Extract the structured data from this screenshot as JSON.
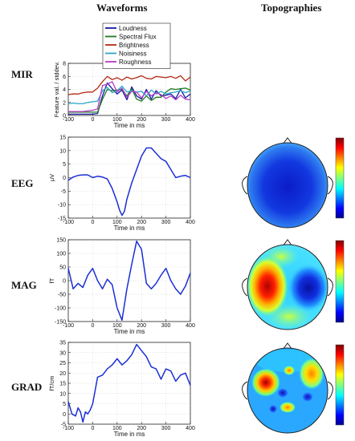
{
  "headers": {
    "waveforms": "Waveforms",
    "topographies": "Topographies"
  },
  "rows": [
    {
      "label": "MIR"
    },
    {
      "label": "EEG"
    },
    {
      "label": "MAG"
    },
    {
      "label": "GRAD"
    }
  ],
  "colors": {
    "loudness": "#1a1aa6",
    "spectral_flux": "#1f7a1f",
    "brightness": "#b22a14",
    "noisiness": "#2ea6c9",
    "roughness": "#b43cc4",
    "wave": "#1b2fd6"
  },
  "chart_data": [
    {
      "type": "line",
      "title": "",
      "xlabel": "Time in ms",
      "ylabel": "Feature val. / stddev.",
      "xlim": [
        -100,
        400
      ],
      "ylim": [
        0,
        8
      ],
      "xticks": [
        -100,
        0,
        100,
        200,
        300,
        400
      ],
      "yticks": [
        0,
        2,
        4,
        6,
        8
      ],
      "grid": true,
      "legend": "top-left",
      "x": [
        -100,
        -80,
        -60,
        -40,
        -20,
        0,
        20,
        40,
        60,
        80,
        100,
        120,
        140,
        160,
        180,
        200,
        220,
        240,
        260,
        280,
        300,
        320,
        340,
        360,
        380,
        400
      ],
      "series": [
        {
          "name": "Loudness",
          "color": "#1a1aa6",
          "values": [
            0.2,
            0.2,
            0.2,
            0.2,
            0.2,
            0.2,
            0.3,
            3.0,
            5.0,
            4.1,
            3.3,
            3.9,
            2.4,
            4.4,
            3.0,
            2.5,
            4.0,
            2.5,
            3.8,
            3.0,
            3.1,
            3.3,
            2.6,
            4.0,
            2.7,
            3.3
          ]
        },
        {
          "name": "Spectral Flux",
          "color": "#1f7a1f",
          "values": [
            0.5,
            0.5,
            0.5,
            0.5,
            0.5,
            0.5,
            0.5,
            2.5,
            4.0,
            3.8,
            3.9,
            4.0,
            3.0,
            4.1,
            2.5,
            2.2,
            3.0,
            2.3,
            2.8,
            2.8,
            3.6,
            4.1,
            4.0,
            4.1,
            4.2,
            3.9
          ]
        },
        {
          "name": "Brightness",
          "color": "#b22a14",
          "values": [
            3.2,
            3.3,
            3.3,
            3.5,
            3.6,
            3.6,
            4.2,
            5.2,
            6.0,
            5.5,
            5.8,
            5.4,
            5.9,
            5.6,
            5.8,
            6.1,
            5.7,
            5.6,
            6.0,
            5.9,
            5.8,
            6.0,
            5.7,
            6.1,
            5.3,
            5.9
          ]
        },
        {
          "name": "Noisiness",
          "color": "#2ea6c9",
          "values": [
            1.8,
            1.9,
            1.8,
            1.8,
            2.0,
            2.1,
            2.2,
            3.8,
            4.3,
            3.5,
            3.8,
            4.5,
            3.6,
            3.8,
            3.6,
            3.7,
            3.0,
            3.9,
            3.3,
            3.7,
            3.3,
            3.5,
            3.6,
            3.8,
            3.5,
            3.8
          ]
        },
        {
          "name": "Roughness",
          "color": "#b43cc4",
          "values": [
            0.6,
            0.6,
            0.6,
            0.6,
            0.7,
            0.8,
            1.0,
            4.6,
            4.8,
            5.2,
            3.6,
            4.2,
            2.8,
            3.7,
            3.6,
            2.7,
            3.7,
            3.0,
            3.5,
            3.2,
            2.6,
            3.0,
            2.4,
            3.1,
            2.5,
            2.4
          ]
        }
      ]
    },
    {
      "type": "line",
      "title": "",
      "xlabel": "Time in ms",
      "ylabel": "µV",
      "xlim": [
        -100,
        400
      ],
      "ylim": [
        -15,
        15
      ],
      "xticks": [
        -100,
        0,
        100,
        200,
        300,
        400
      ],
      "yticks": [
        -15,
        -10,
        -5,
        0,
        5,
        10,
        15
      ],
      "grid": true,
      "x": [
        -100,
        -80,
        -60,
        -40,
        -20,
        0,
        20,
        40,
        60,
        80,
        100,
        110,
        120,
        130,
        140,
        160,
        180,
        200,
        220,
        240,
        260,
        280,
        300,
        320,
        340,
        360,
        380,
        400
      ],
      "series": [
        {
          "name": "",
          "color": "#1b2fd6",
          "values": [
            -1.0,
            0.2,
            0.8,
            1.0,
            1.0,
            0.0,
            0.5,
            0.2,
            -0.5,
            -4.0,
            -9.0,
            -12.0,
            -14.0,
            -12.5,
            -8.0,
            -2.0,
            3.0,
            8.0,
            11.0,
            11.0,
            9.0,
            7.0,
            6.0,
            3.0,
            0.0,
            0.5,
            0.8,
            0.0
          ]
        }
      ]
    },
    {
      "type": "line",
      "title": "",
      "xlabel": "Time in ms",
      "ylabel": "fT",
      "xlim": [
        -100,
        400
      ],
      "ylim": [
        -150,
        150
      ],
      "xticks": [
        -100,
        0,
        100,
        200,
        300,
        400
      ],
      "yticks": [
        -150,
        -100,
        -50,
        0,
        50,
        100,
        150
      ],
      "grid": true,
      "x": [
        -100,
        -80,
        -60,
        -40,
        -20,
        0,
        20,
        40,
        60,
        80,
        100,
        120,
        140,
        160,
        180,
        200,
        220,
        240,
        260,
        280,
        300,
        320,
        340,
        360,
        380,
        400
      ],
      "series": [
        {
          "name": "",
          "color": "#1b2fd6",
          "values": [
            45,
            -30,
            -10,
            -25,
            20,
            45,
            0,
            -30,
            5,
            -15,
            -100,
            -145,
            -30,
            60,
            145,
            115,
            -10,
            -30,
            -10,
            20,
            45,
            0,
            -30,
            -50,
            -20,
            28
          ]
        }
      ]
    },
    {
      "type": "line",
      "title": "",
      "xlabel": "Time in ms",
      "ylabel": "fT/cm",
      "xlim": [
        -100,
        400
      ],
      "ylim": [
        -5,
        35
      ],
      "xticks": [
        -100,
        0,
        100,
        200,
        300,
        400
      ],
      "yticks": [
        -5,
        0,
        5,
        10,
        15,
        20,
        25,
        30,
        35
      ],
      "grid": true,
      "x": [
        -100,
        -85,
        -70,
        -60,
        -50,
        -40,
        -30,
        -20,
        -10,
        0,
        20,
        40,
        60,
        80,
        100,
        120,
        140,
        160,
        180,
        200,
        220,
        240,
        260,
        280,
        300,
        320,
        340,
        360,
        380,
        400
      ],
      "series": [
        {
          "name": "",
          "color": "#1b2fd6",
          "values": [
            6,
            0,
            -1,
            3,
            1,
            -4,
            1,
            0,
            2,
            5,
            18,
            19,
            22,
            24,
            27,
            24,
            26,
            29,
            34,
            31,
            28,
            23,
            22,
            17,
            22,
            21,
            16,
            19,
            20,
            14
          ]
        }
      ]
    }
  ]
}
